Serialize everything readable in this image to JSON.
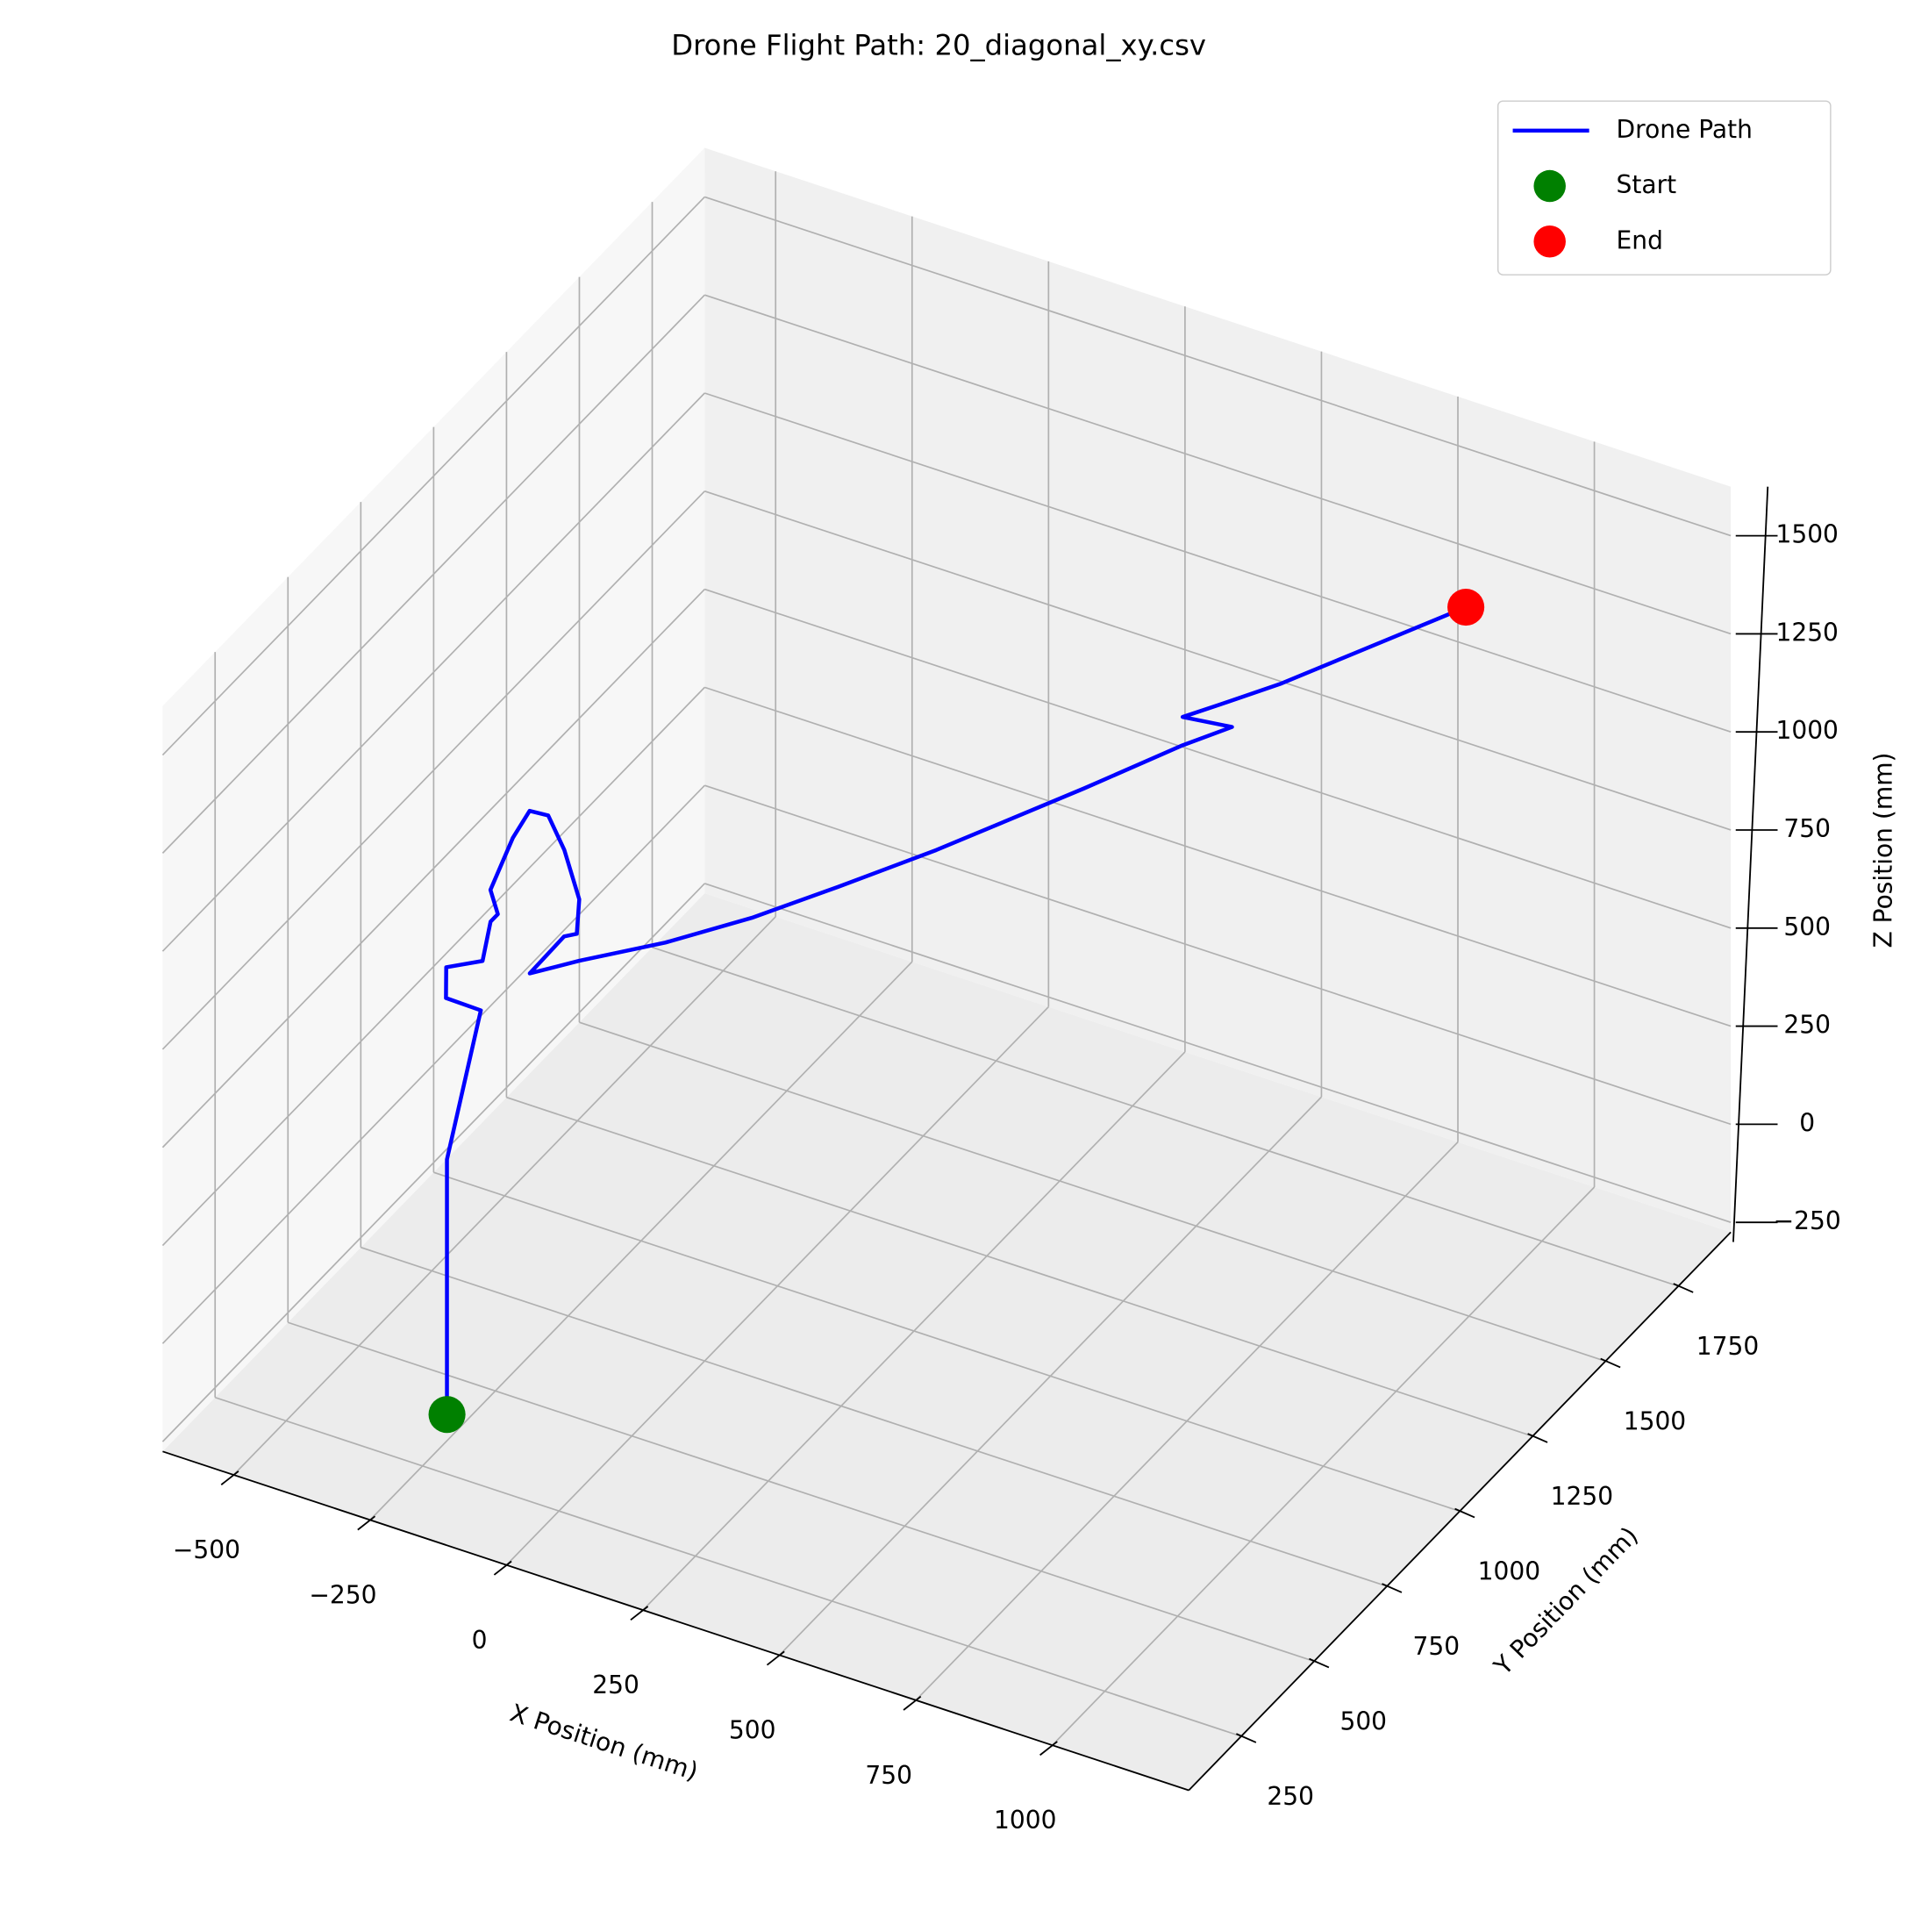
{
  "chart_data": {
    "type": "line3d",
    "title": "Drone Flight Path: 20_diagonal_xy.csv",
    "xlabel": "X Position (mm)",
    "ylabel": "Y Position (mm)",
    "zlabel": "Z Position (mm)",
    "xlim": [
      -630,
      1250
    ],
    "ylim": [
      70,
      1930
    ],
    "zlim": [
      -275,
      1625
    ],
    "xticks": [
      {
        "value": -500,
        "label": "−500"
      },
      {
        "value": -250,
        "label": "−250"
      },
      0,
      250,
      500,
      750,
      1000
    ],
    "yticks": [
      250,
      500,
      750,
      1000,
      1250,
      1500,
      1750
    ],
    "zticks": [
      {
        "value": -250,
        "label": "−250"
      },
      0,
      250,
      500,
      750,
      1000,
      1250,
      1500
    ],
    "grid": true,
    "legend": "upper right",
    "series": [
      {
        "name": "Drone Path",
        "color": "#0000ff",
        "kind": "line",
        "x": [
          -140,
          -140,
          -140,
          -109,
          -174,
          -215,
          -173,
          -215,
          -215,
          -258,
          -297,
          -310,
          -278,
          -209,
          -122,
          -79,
          -93,
          -91,
          -26,
          82,
          182,
          273,
          373,
          508,
          600,
          657,
          575,
          615,
          683,
          760,
          873
        ],
        "y": [
          128,
          128,
          128,
          186,
          188,
          266,
          312,
          418,
          443,
          498,
          648,
          730,
          734,
          660,
          548,
          459,
          442,
          320,
          368,
          461,
          571,
          696,
          846,
          1100,
          1266,
          1329,
          1313,
          1365,
          1450,
          1559,
          1727
        ],
        "z": [
          0,
          150,
          650,
          1000,
          1000,
          1000,
          1000,
          1000,
          1000,
          1000,
          1000,
          1000,
          1000,
          1000,
          1000,
          1000,
          1000,
          1000,
          1025,
          1050,
          1075,
          1100,
          1125,
          1150,
          1175,
          1200,
          1200,
          1210,
          1230,
          1260,
          1300
        ]
      },
      {
        "name": "Start",
        "color": "#008000",
        "kind": "point",
        "x": [
          -140
        ],
        "y": [
          128
        ],
        "z": [
          0
        ]
      },
      {
        "name": "End",
        "color": "#ff0000",
        "kind": "point",
        "x": [
          873
        ],
        "y": [
          1727
        ],
        "z": [
          1300
        ]
      }
    ]
  }
}
